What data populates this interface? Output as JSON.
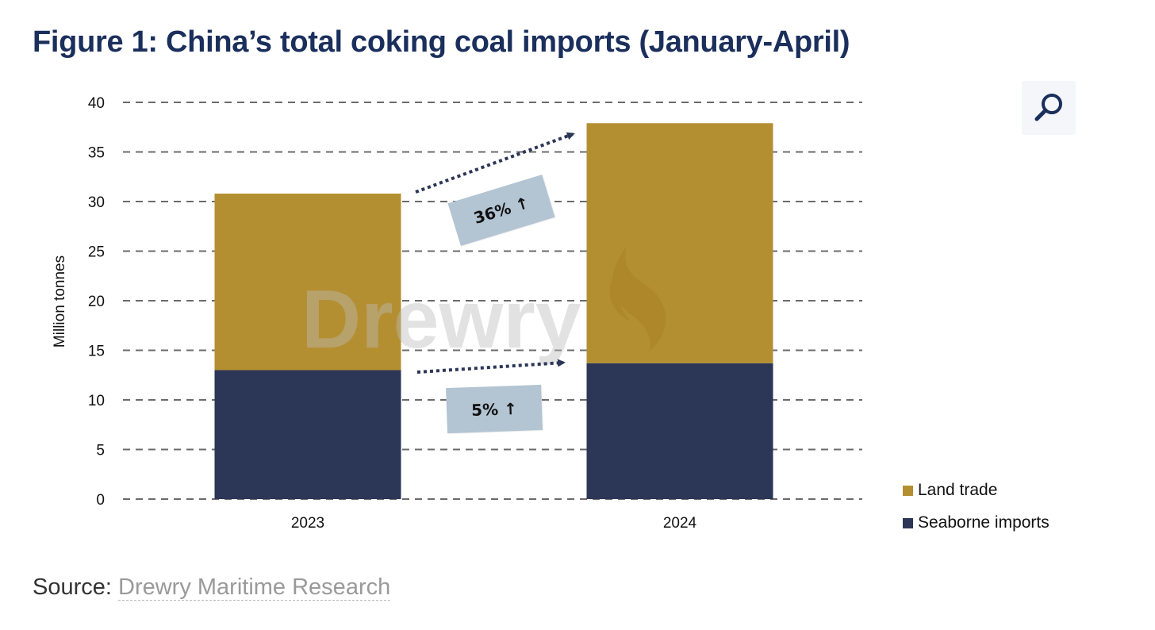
{
  "title": "Figure 1: China’s total coking coal imports (January-April)",
  "source": {
    "label": "Source: ",
    "link_text": "Drewry Maritime Research"
  },
  "watermark": "Drewry",
  "zoom_button_icon": "magnifier-icon",
  "callouts": {
    "land_change": "36% ↑",
    "seaborne_change": "5% ↑"
  },
  "colors": {
    "land_trade": "#b48f32",
    "seaborne": "#2c3656",
    "title": "#1b2f5c",
    "callout_bg": "#b3c4d3",
    "arrow": "#2c3656"
  },
  "chart_data": {
    "type": "bar",
    "stacked": true,
    "categories": [
      "2023",
      "2024"
    ],
    "series": [
      {
        "name": "Seaborne imports",
        "values": [
          13.0,
          13.7
        ]
      },
      {
        "name": "Land trade",
        "values": [
          17.8,
          24.2
        ]
      }
    ],
    "ylabel": "Million tonnes",
    "xlabel": "",
    "ylim": [
      0,
      40
    ],
    "yticks": [
      0,
      5,
      10,
      15,
      20,
      25,
      30,
      35,
      40
    ],
    "grid": "dashed horizontal",
    "legend": {
      "placement": "bottom-right",
      "entries": [
        "Land trade",
        "Seaborne imports"
      ]
    }
  }
}
